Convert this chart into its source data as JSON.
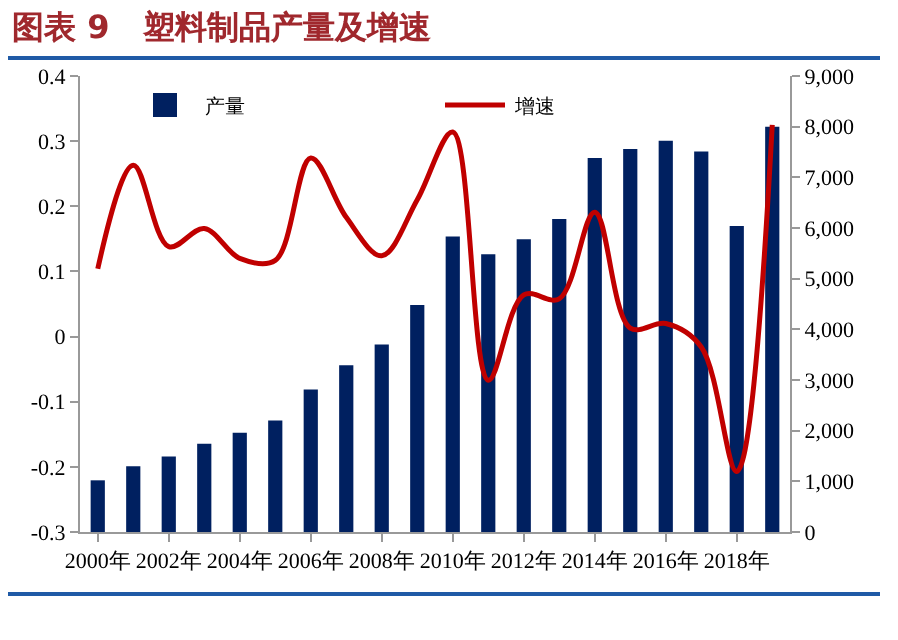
{
  "chart_data": {
    "type": "bar",
    "title": "图表 9   塑料制品产量及增速",
    "categories": [
      "2000年",
      null,
      "2002年",
      null,
      "2004年",
      null,
      "2006年",
      null,
      "2008年",
      null,
      "2010年",
      null,
      "2012年",
      null,
      "2014年",
      null,
      "2016年",
      null,
      "2018年",
      null
    ],
    "series": [
      {
        "name": "产量",
        "axis": "y2",
        "color": "#002060",
        "values": [
          1020,
          1300,
          1490,
          1740,
          1960,
          2200,
          2810,
          3290,
          3700,
          4480,
          5830,
          5480,
          5780,
          6180,
          7380,
          7560,
          7720,
          7510,
          6040,
          8000
        ]
      },
      {
        "name": "增速",
        "type": "line",
        "axis": "y",
        "color": "#c00000",
        "values": [
          0.104,
          0.263,
          0.138,
          0.166,
          0.12,
          0.117,
          0.274,
          0.183,
          0.124,
          0.21,
          0.314,
          -0.067,
          0.064,
          0.058,
          0.191,
          0.013,
          0.02,
          -0.016,
          -0.207,
          0.325
        ]
      }
    ],
    "ylim": [
      -0.3,
      0.4
    ],
    "yticks": [
      -0.3,
      -0.2,
      -0.1,
      0,
      0.1,
      0.2,
      0.3,
      0.4
    ],
    "y2lim": [
      0,
      9000
    ],
    "y2ticks": [
      0,
      {
        "value": 1000,
        "label": "1,000"
      },
      {
        "value": 2000,
        "label": "2,000"
      },
      {
        "value": 3000,
        "label": "3,000"
      },
      {
        "value": 4000,
        "label": "4,000"
      },
      {
        "value": 5000,
        "label": "5,000"
      },
      {
        "value": 6000,
        "label": "6,000"
      },
      {
        "value": 7000,
        "label": "7,000"
      },
      {
        "value": 8000,
        "label": "8,000"
      },
      {
        "value": 9000,
        "label": "9,000"
      }
    ],
    "legend": "top",
    "grid": false,
    "marker": "none",
    "line_style": "solid"
  }
}
